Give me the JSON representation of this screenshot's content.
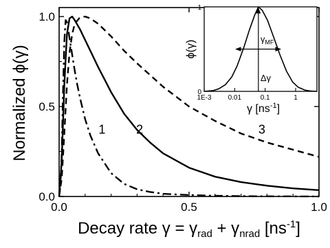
{
  "chart_data": [
    {
      "type": "line",
      "xlabel": {
        "prefix": "Decay rate γ = γ",
        "sub1": "rad",
        "plus": " + γ",
        "sub2": "nrad",
        "unit_open": " [ns",
        "exp": "-1",
        "unit_close": "]"
      },
      "ylabel": "Normalized ϕ(γ)",
      "xlim": [
        0.0,
        1.0
      ],
      "ylim": [
        0.0,
        1.05
      ],
      "x_ticks": [
        {
          "v": 0.0,
          "label": "0.0"
        },
        {
          "v": 0.5,
          "label": "0.5"
        },
        {
          "v": 1.0,
          "label": "1.0"
        }
      ],
      "y_ticks": [
        {
          "v": 0.0,
          "label": "0.0"
        },
        {
          "v": 0.5,
          "label": "0.5"
        },
        {
          "v": 1.0,
          "label": "1.0"
        }
      ],
      "grid": false,
      "series": [
        {
          "name": "1",
          "style": "dash-dot",
          "x": [
            0.0,
            0.005,
            0.01,
            0.015,
            0.02,
            0.025,
            0.03,
            0.035,
            0.04,
            0.05,
            0.06,
            0.07,
            0.08,
            0.1,
            0.12,
            0.15,
            0.2,
            0.25,
            0.3,
            0.35,
            0.4,
            0.5,
            0.6,
            0.7,
            0.8,
            0.9,
            1.0
          ],
          "y": [
            0.0,
            0.06,
            0.24,
            0.58,
            0.86,
            0.98,
            0.97,
            0.93,
            0.88,
            0.79,
            0.7,
            0.62,
            0.55,
            0.43,
            0.34,
            0.24,
            0.13,
            0.07,
            0.04,
            0.025,
            0.015,
            0.008,
            0.004,
            0.002,
            0.001,
            0.0005,
            0.0
          ]
        },
        {
          "name": "2",
          "style": "solid",
          "x": [
            0.0,
            0.01,
            0.02,
            0.03,
            0.04,
            0.05,
            0.06,
            0.08,
            0.1,
            0.12,
            0.15,
            0.2,
            0.25,
            0.3,
            0.35,
            0.4,
            0.5,
            0.6,
            0.7,
            0.8,
            0.9,
            1.0
          ],
          "y": [
            0.0,
            0.2,
            0.62,
            0.9,
            0.99,
            1.0,
            0.98,
            0.93,
            0.87,
            0.81,
            0.72,
            0.58,
            0.46,
            0.37,
            0.3,
            0.24,
            0.16,
            0.11,
            0.08,
            0.06,
            0.045,
            0.035
          ]
        },
        {
          "name": "3",
          "style": "dashed",
          "x": [
            0.0,
            0.01,
            0.02,
            0.03,
            0.04,
            0.05,
            0.06,
            0.08,
            0.1,
            0.12,
            0.15,
            0.2,
            0.25,
            0.3,
            0.4,
            0.5,
            0.6,
            0.7,
            0.8,
            0.9,
            1.0
          ],
          "y": [
            0.0,
            0.1,
            0.35,
            0.62,
            0.8,
            0.9,
            0.96,
            0.995,
            1.0,
            0.99,
            0.96,
            0.89,
            0.81,
            0.74,
            0.61,
            0.5,
            0.42,
            0.35,
            0.3,
            0.26,
            0.22
          ]
        }
      ],
      "curve_labels": [
        {
          "text": "1",
          "x": 0.165,
          "y": 0.35
        },
        {
          "text": "2",
          "x": 0.31,
          "y": 0.35
        },
        {
          "text": "3",
          "x": 0.78,
          "y": 0.35
        }
      ]
    },
    {
      "type": "line",
      "inset": true,
      "xlabel": "γ [ns",
      "xlabel_exp": "-1",
      "xlabel_close": "]",
      "ylabel": "ϕ(γ)",
      "x_scale": "log",
      "xlim": [
        0.001,
        5.0
      ],
      "ylim": [
        0,
        1
      ],
      "x_ticks": [
        {
          "v": 0.001,
          "label": "1E-3"
        },
        {
          "v": 0.01,
          "label": "0.01"
        },
        {
          "v": 0.1,
          "label": "0.1"
        },
        {
          "v": 1,
          "label": "1"
        }
      ],
      "y_ticks": [
        {
          "v": 0,
          "label": "0"
        },
        {
          "v": 1,
          "label": "1"
        }
      ],
      "series": [
        {
          "style": "solid",
          "x": [
            0.001,
            0.002,
            0.003,
            0.005,
            0.008,
            0.012,
            0.02,
            0.03,
            0.045,
            0.06,
            0.08,
            0.12,
            0.2,
            0.3,
            0.5,
            0.8,
            1.2,
            2.0,
            3.0,
            5.0
          ],
          "y": [
            0.0,
            0.01,
            0.03,
            0.08,
            0.17,
            0.3,
            0.52,
            0.72,
            0.9,
            1.0,
            0.96,
            0.84,
            0.62,
            0.44,
            0.24,
            0.11,
            0.05,
            0.015,
            0.005,
            0.0
          ]
        }
      ],
      "annotations": {
        "peak_label": "γ",
        "peak_label_sub": "MF",
        "width_label": "Δγ",
        "peak_x": 0.06,
        "width_x": [
          0.011,
          0.32
        ],
        "width_y": 0.5
      }
    }
  ]
}
